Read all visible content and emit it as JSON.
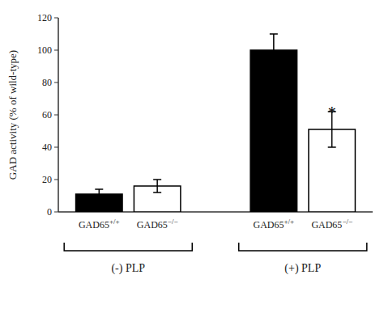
{
  "chart_data": {
    "type": "bar",
    "ylabel": "GAD activity (% of wild-type)",
    "categories": [
      "GAD65+/+",
      "GAD65−/−",
      "GAD65+/+",
      "GAD65−/−"
    ],
    "values": [
      11,
      16,
      100,
      51
    ],
    "errors": [
      3,
      4,
      10,
      11
    ],
    "colors": [
      "#000000",
      "#ffffff",
      "#000000",
      "#ffffff"
    ],
    "groups": [
      {
        "label": "(-) PLP",
        "count": 2
      },
      {
        "label": "(+) PLP",
        "count": 2
      }
    ],
    "annotations": [
      {
        "text": "*",
        "index": 3,
        "y": 64
      }
    ],
    "ylim": [
      0,
      120
    ],
    "yticks": [
      0,
      20,
      40,
      60,
      80,
      100,
      120
    ],
    "grid": false
  }
}
